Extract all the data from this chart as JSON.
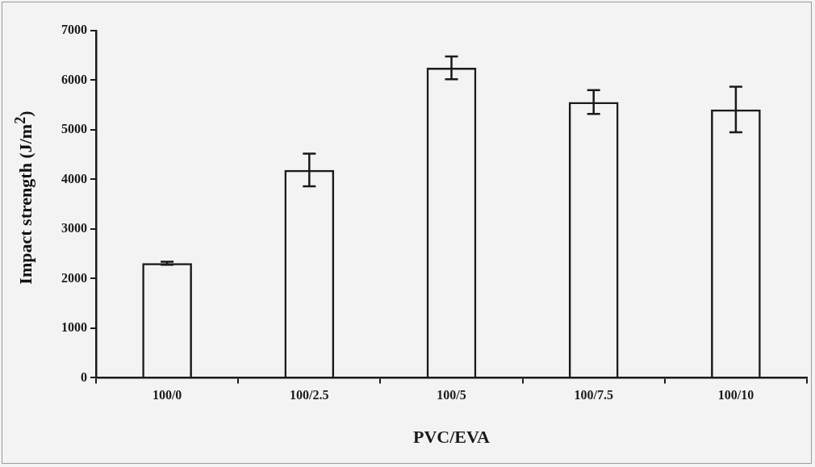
{
  "chart_data": {
    "type": "bar",
    "xlabel": "PVC/EVA",
    "ylabel": "Impact strength (J/m$^{2}$)",
    "categories": [
      "100/0",
      "100/2.5",
      "100/5",
      "100/7.5",
      "100/10"
    ],
    "values": [
      2310,
      4190,
      6250,
      5560,
      5410
    ],
    "errors": [
      30,
      330,
      230,
      240,
      460
    ],
    "color": "#1a1a1a",
    "ylim": [
      0,
      7000
    ],
    "yticks": [
      0,
      1000,
      2000,
      3000,
      4000,
      5000,
      6000,
      7000
    ],
    "grid": false,
    "legend": false
  }
}
